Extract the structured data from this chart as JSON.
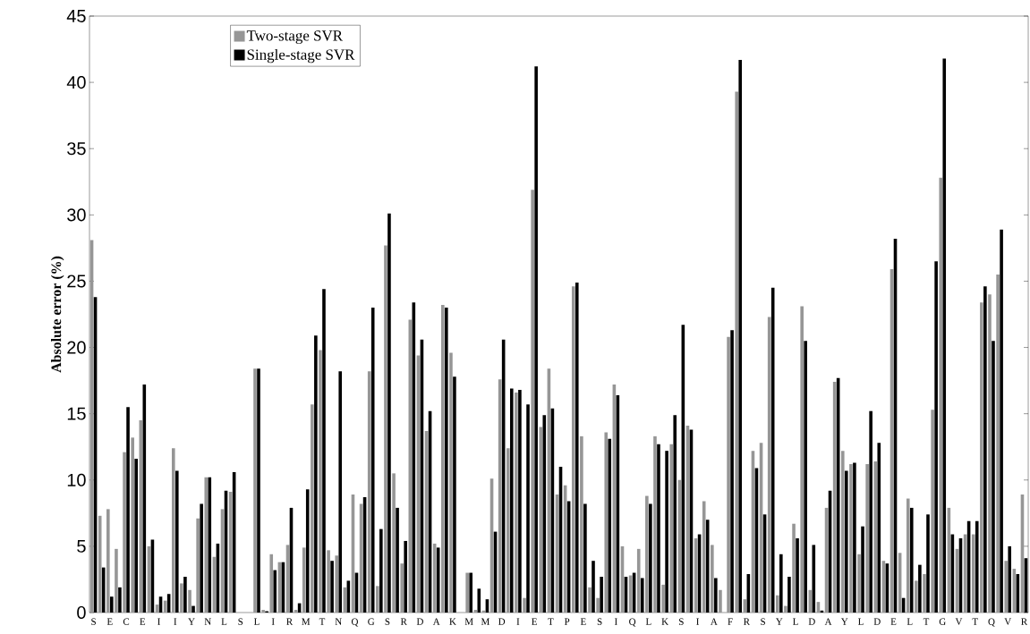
{
  "chart_data": {
    "type": "bar",
    "ylabel": "Absolute error (%)",
    "categories": [
      "S",
      null,
      "E",
      null,
      "C",
      null,
      "E",
      null,
      "I",
      null,
      "I",
      null,
      "Y",
      null,
      "N",
      null,
      "L",
      null,
      "S",
      null,
      "L",
      null,
      "I",
      null,
      "R",
      null,
      "M",
      null,
      "T",
      null,
      "N",
      null,
      "Q",
      null,
      "G",
      null,
      "S",
      null,
      "R",
      null,
      "D",
      null,
      "A",
      null,
      "K",
      null,
      "M",
      null,
      "M",
      null,
      "D",
      null,
      "I",
      null,
      "E",
      null,
      "T",
      null,
      "P",
      null,
      "E",
      null,
      "S",
      null,
      "I",
      null,
      "Q",
      null,
      "L",
      null,
      "K",
      null,
      "S",
      null,
      "I",
      null,
      "A",
      null,
      "F",
      null,
      "R",
      null,
      "S",
      null,
      "Y",
      null,
      "L",
      null,
      "D",
      null,
      "A",
      null,
      "Y",
      null,
      "L",
      null,
      "D",
      null,
      "E",
      null,
      "L",
      null,
      "T",
      null,
      "G",
      null,
      "V",
      null,
      "T",
      null,
      "Q",
      null,
      "V",
      null,
      "R"
    ],
    "series": [
      {
        "name": "Two-stage SVR",
        "color": "#969696",
        "values": [
          28.1,
          7.3,
          7.8,
          4.8,
          12.1,
          13.2,
          14.5,
          5.0,
          0.6,
          0.9,
          12.4,
          2.2,
          1.7,
          7.1,
          10.2,
          4.2,
          7.8,
          9.1,
          null,
          null,
          18.4,
          0.2,
          4.4,
          3.8,
          5.1,
          0.2,
          4.9,
          15.7,
          19.8,
          4.7,
          4.3,
          1.9,
          8.9,
          8.2,
          18.2,
          2.0,
          27.7,
          10.5,
          3.7,
          22.1,
          19.4,
          13.7,
          5.2,
          23.2,
          19.6,
          null,
          3.0,
          0.2,
          0.15,
          10.1,
          17.6,
          12.4,
          16.6,
          1.1,
          31.9,
          14.0,
          18.4,
          8.9,
          9.6,
          24.6,
          13.3,
          1.9,
          1.1,
          13.6,
          17.2,
          5.0,
          2.8,
          4.8,
          8.8,
          13.3,
          2.1,
          12.7,
          10.0,
          14.1,
          5.6,
          8.4,
          5.1,
          1.7,
          20.8,
          39.3,
          1.0,
          12.2,
          12.8,
          22.3,
          1.3,
          0.5,
          6.7,
          23.1,
          1.7,
          0.8,
          7.9,
          17.4,
          12.2,
          11.2,
          4.4,
          11.2,
          11.4,
          3.9,
          25.9,
          4.5,
          8.6,
          2.4,
          2.9,
          15.3,
          32.8,
          7.9,
          4.8,
          5.9,
          5.9,
          23.4,
          24.0,
          25.5,
          3.9,
          3.3,
          8.9
        ]
      },
      {
        "name": "Single-stage SVR",
        "color": "#000000",
        "values": [
          23.8,
          3.4,
          1.2,
          1.9,
          15.5,
          11.6,
          17.2,
          5.5,
          1.2,
          1.4,
          10.7,
          2.7,
          0.5,
          8.2,
          10.2,
          5.2,
          9.2,
          10.6,
          null,
          null,
          18.4,
          0.1,
          3.2,
          3.8,
          7.9,
          0.7,
          9.3,
          20.9,
          24.4,
          3.9,
          18.2,
          2.4,
          3.0,
          8.7,
          23.0,
          6.3,
          30.1,
          7.9,
          5.4,
          23.4,
          20.6,
          15.2,
          4.9,
          23.0,
          17.8,
          null,
          3.0,
          1.8,
          1.0,
          6.1,
          20.6,
          16.9,
          16.8,
          15.7,
          41.2,
          14.9,
          15.4,
          11.0,
          8.4,
          24.9,
          8.2,
          3.9,
          2.7,
          13.1,
          16.4,
          2.7,
          3.0,
          2.6,
          8.2,
          12.7,
          12.2,
          14.9,
          21.7,
          13.8,
          5.9,
          7.0,
          2.6,
          null,
          21.3,
          41.7,
          2.9,
          10.9,
          7.4,
          24.5,
          4.4,
          2.7,
          5.6,
          20.5,
          5.1,
          0.15,
          9.2,
          17.7,
          10.7,
          11.3,
          6.5,
          15.2,
          12.8,
          3.7,
          28.2,
          1.1,
          7.9,
          3.6,
          7.4,
          26.5,
          41.8,
          5.9,
          5.6,
          6.9,
          6.9,
          24.6,
          20.5,
          28.9,
          5.0,
          2.9,
          4.1
        ]
      }
    ],
    "ylim": [
      0,
      45
    ],
    "yticks": [
      0,
      5,
      10,
      15,
      20,
      25,
      30,
      35,
      40,
      45
    ],
    "legend": "top left",
    "grid": false
  }
}
